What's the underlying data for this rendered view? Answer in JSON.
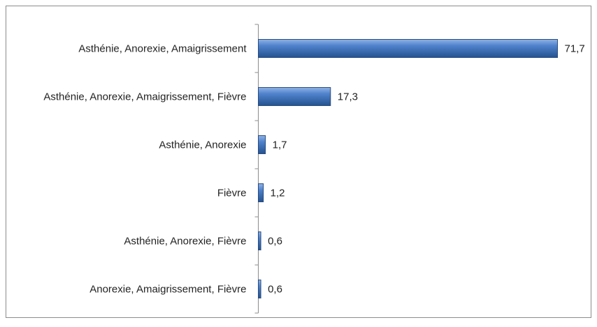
{
  "chart_data": {
    "type": "bar",
    "orientation": "horizontal",
    "categories": [
      "Asthénie, Anorexie, Amaigrissement",
      "Asthénie, Anorexie, Amaigrissement, Fièvre",
      "Asthénie, Anorexie",
      "Fièvre",
      "Asthénie, Anorexie, Fièvre",
      "Anorexie, Amaigrissement, Fièvre"
    ],
    "values": [
      71.7,
      17.3,
      1.7,
      1.2,
      0.6,
      0.6
    ],
    "value_labels": [
      "71,7",
      "17,3",
      "1,7",
      "1,2",
      "0,6",
      "0,6"
    ],
    "color": "#3f72bb"
  }
}
